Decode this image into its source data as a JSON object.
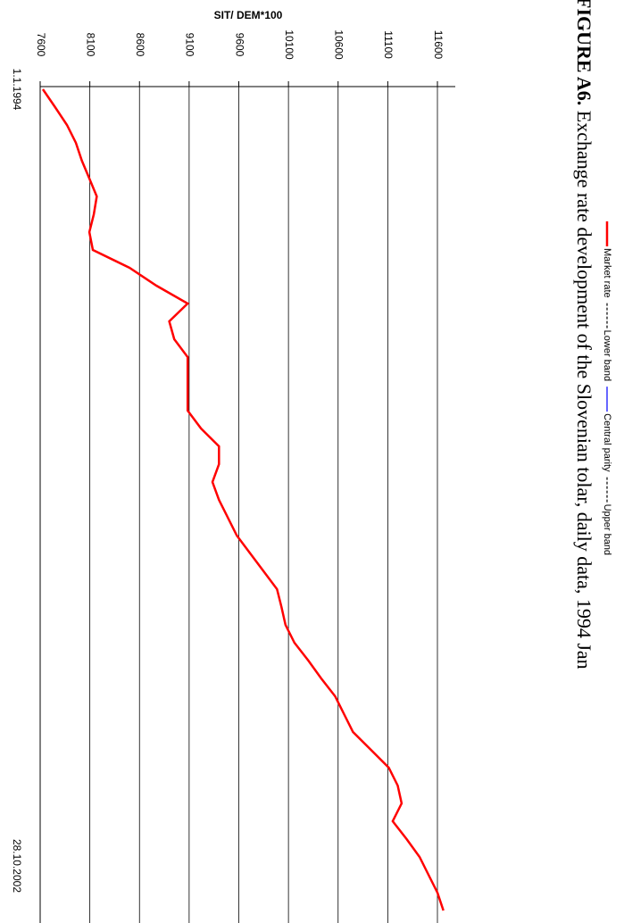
{
  "chart_data": {
    "type": "line",
    "figure_label": "FIGURE A6.",
    "title": "Exchange rate development of the Slovenian tolar, daily data, 1994 Jan",
    "ylabel": "SIT/ DEM*100",
    "categories": [
      "1.1.1994",
      null,
      null,
      null,
      null,
      null,
      null,
      null,
      null,
      null,
      null,
      null,
      null,
      null,
      null,
      null,
      null,
      null,
      null,
      null,
      null,
      null,
      null,
      null,
      null,
      null,
      null,
      null,
      null,
      null,
      null,
      null,
      null,
      null,
      null,
      null,
      null,
      null,
      null,
      null,
      null,
      null,
      null,
      null,
      null,
      null,
      "28.10.2002"
    ],
    "series": [
      {
        "name": "Market rate",
        "color": "#ff0000",
        "style": "solid",
        "values": [
          7627,
          7750,
          7870,
          7960,
          8020,
          8095,
          8170,
          8140,
          8095,
          8130,
          8500,
          8770,
          9085,
          8900,
          8950,
          9085,
          9085,
          9085,
          9085,
          9220,
          9400,
          9400,
          9335,
          9400,
          9490,
          9580,
          9715,
          9850,
          9985,
          10030,
          10070,
          10160,
          10300,
          10430,
          10570,
          10660,
          10750,
          10930,
          11110,
          11200,
          11240,
          11150,
          11290,
          11420,
          11510,
          11600,
          11660
        ]
      },
      {
        "name": "Lower band",
        "color": "#000000",
        "style": "dotted",
        "values": [
          null,
          null,
          null,
          null,
          null,
          null,
          null,
          null,
          null,
          null,
          null,
          null,
          null,
          null,
          null,
          null,
          null,
          null,
          null,
          null,
          null,
          null,
          null,
          null,
          null,
          null,
          null,
          null,
          null,
          null,
          null,
          null,
          null,
          null,
          null,
          null,
          null,
          null,
          null,
          null,
          null,
          null,
          null,
          null,
          null,
          null,
          null
        ]
      },
      {
        "name": "Central parity",
        "color": "#0000ff",
        "style": "solid",
        "values": [
          null,
          null,
          null,
          null,
          null,
          null,
          null,
          null,
          null,
          null,
          null,
          null,
          null,
          null,
          null,
          null,
          null,
          null,
          null,
          null,
          null,
          null,
          null,
          null,
          null,
          null,
          null,
          null,
          null,
          null,
          null,
          null,
          null,
          null,
          null,
          null,
          null,
          null,
          null,
          null,
          null,
          null,
          null,
          null,
          null,
          null,
          null
        ]
      },
      {
        "name": "Upper band",
        "color": "#000000",
        "style": "dotted",
        "values": [
          null,
          null,
          null,
          null,
          null,
          null,
          null,
          null,
          null,
          null,
          null,
          null,
          null,
          null,
          null,
          null,
          null,
          null,
          null,
          null,
          null,
          null,
          null,
          null,
          null,
          null,
          null,
          null,
          null,
          null,
          null,
          null,
          null,
          null,
          null,
          null,
          null,
          null,
          null,
          null,
          null,
          null,
          null,
          null,
          null,
          null,
          null
        ]
      }
    ],
    "ylim": [
      7600,
      11600
    ],
    "yticks": [
      7600,
      8100,
      8600,
      9100,
      9600,
      10100,
      10600,
      11100,
      11600
    ],
    "grid": true
  }
}
